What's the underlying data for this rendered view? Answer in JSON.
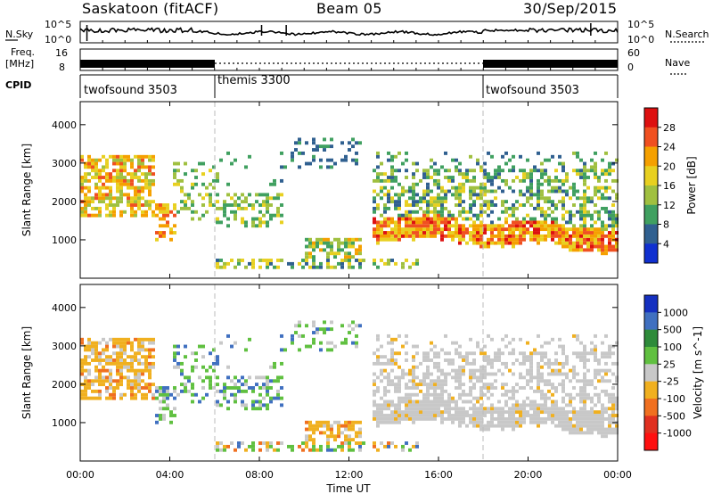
{
  "header": {
    "station": "Saskatoon (fitACF)",
    "beam": "Beam 05",
    "date": "30/Sep/2015"
  },
  "strip_noise": {
    "left_label": "N.Sky",
    "right_label": "N.Search",
    "left_ticks": [
      "10^5",
      "10^0"
    ],
    "right_ticks": [
      "10^5",
      "10^0"
    ]
  },
  "strip_freq": {
    "left_label_1": "Freq.",
    "left_label_2": "[MHz]",
    "right_label": "Nave",
    "left_ticks": [
      "16",
      "8"
    ],
    "right_ticks": [
      "60",
      "0"
    ]
  },
  "cpid": {
    "label": "CPID",
    "segments": [
      {
        "name": "twofsound 3503",
        "start_h": 0,
        "end_h": 6
      },
      {
        "name": "themis 3300",
        "start_h": 6,
        "end_h": 18
      },
      {
        "name": "twofsound 3503",
        "start_h": 18,
        "end_h": 24
      }
    ]
  },
  "panels": {
    "ylabel": "Slant Range [km]",
    "yticks": [
      "4000",
      "3000",
      "2000",
      "1000"
    ],
    "xlabel": "Time UT",
    "xticks": [
      "00:00",
      "04:00",
      "08:00",
      "12:00",
      "16:00",
      "20:00",
      "00:00"
    ]
  },
  "power_scale": {
    "label": "Power [dB]",
    "ticks": [
      "28",
      "24",
      "20",
      "16",
      "12",
      "8",
      "4"
    ],
    "colors": [
      "#dd1010",
      "#f05020",
      "#f5a000",
      "#e8d020",
      "#a0c040",
      "#40a060",
      "#306090",
      "#1030d0"
    ]
  },
  "velocity_scale": {
    "label": "Velocity [m s^-1]",
    "ticks": [
      "1000",
      "500",
      "100",
      "25",
      "-25",
      "-100",
      "-500",
      "-1000"
    ],
    "colors": [
      "#1530c0",
      "#4070c0",
      "#2e8b3a",
      "#60c040",
      "#c8c8c8",
      "#f0b020",
      "#f07020",
      "#e03020",
      "#ff1010"
    ]
  },
  "chart_data": {
    "type": "heatmap",
    "x_range_hours": [
      0,
      24
    ],
    "y_range_km": [
      0,
      4600
    ],
    "series": [
      {
        "name": "Power [dB]",
        "value_range": [
          0,
          32
        ]
      },
      {
        "name": "Velocity [m s^-1]",
        "value_range": [
          -1000,
          1000
        ]
      }
    ],
    "dashed_mode_boundaries_h": [
      6,
      18
    ],
    "grid": false
  },
  "accent": "#000000"
}
